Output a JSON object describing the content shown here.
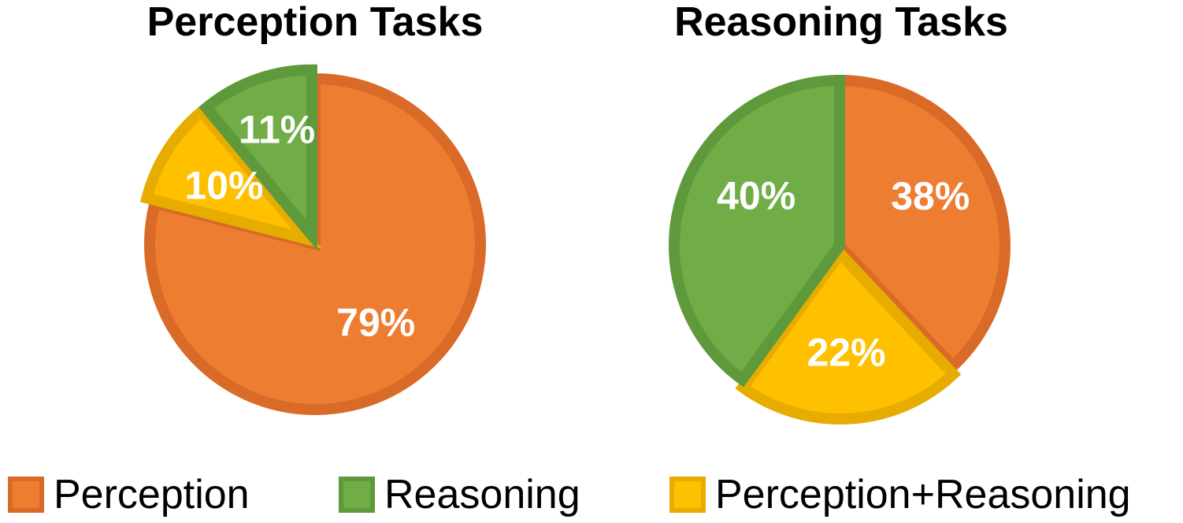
{
  "chart_data": [
    {
      "type": "pie",
      "title": "Perception Tasks",
      "slices": [
        {
          "label": "Perception",
          "value": 79,
          "display": "79%",
          "exploded": false
        },
        {
          "label": "Perception+Reasoning",
          "value": 10,
          "display": "10%",
          "exploded": true
        },
        {
          "label": "Reasoning",
          "value": 11,
          "display": "11%",
          "exploded": true
        }
      ]
    },
    {
      "type": "pie",
      "title": "Reasoning Tasks",
      "slices": [
        {
          "label": "Perception",
          "value": 38,
          "display": "38%",
          "exploded": false
        },
        {
          "label": "Perception+Reasoning",
          "value": 22,
          "display": "22%",
          "exploded": true
        },
        {
          "label": "Reasoning",
          "value": 40,
          "display": "40%",
          "exploded": false
        }
      ]
    }
  ],
  "legend": {
    "placement": "bottom",
    "items": [
      {
        "label": "Perception",
        "color": "#ED7D31",
        "border": "#D96A27"
      },
      {
        "label": "Reasoning",
        "color": "#70AD47",
        "border": "#5E9A3C"
      },
      {
        "label": "Perception+Reasoning",
        "color": "#FFC000",
        "border": "#E6AC00"
      }
    ]
  },
  "colors": {
    "Perception": "#ED7D31",
    "Reasoning": "#70AD47",
    "Perception+Reasoning": "#FFC000"
  },
  "stroke_colors": {
    "Perception": "#D96A27",
    "Reasoning": "#5E9A3C",
    "Perception+Reasoning": "#E6AC00"
  }
}
